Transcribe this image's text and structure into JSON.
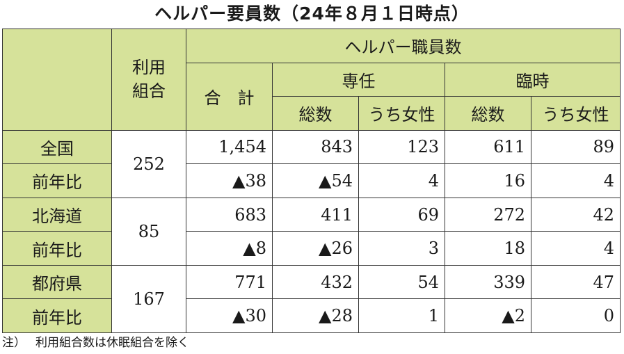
{
  "title": "ヘルパー要員数（24年８月１日時点）",
  "headers": {
    "members": "利用\n組合",
    "helper_staff": "ヘルパー職員数",
    "total": "合　計",
    "fulltime": "専任",
    "temporary": "臨時",
    "count": "総数",
    "female": "うち女性"
  },
  "rows": [
    {
      "label": "全国",
      "members": "252",
      "total": "1,454",
      "ft_total": "843",
      "ft_female": "123",
      "tmp_total": "611",
      "tmp_female": "89"
    },
    {
      "label": "前年比",
      "total": "▲38",
      "ft_total": "▲54",
      "ft_female": "4",
      "tmp_total": "16",
      "tmp_female": "4"
    },
    {
      "label": "北海道",
      "members": "85",
      "total": "683",
      "ft_total": "411",
      "ft_female": "69",
      "tmp_total": "272",
      "tmp_female": "42"
    },
    {
      "label": "前年比",
      "total": "▲8",
      "ft_total": "▲26",
      "ft_female": "3",
      "tmp_total": "18",
      "tmp_female": "4"
    },
    {
      "label": "都府県",
      "members": "167",
      "total": "771",
      "ft_total": "432",
      "ft_female": "54",
      "tmp_total": "339",
      "tmp_female": "47"
    },
    {
      "label": "前年比",
      "total": "▲30",
      "ft_total": "▲28",
      "ft_female": "1",
      "tmp_total": "▲2",
      "tmp_female": "0"
    }
  ],
  "note": {
    "prefix": "注）",
    "text": "利用組合数は休眠組合を除く"
  }
}
